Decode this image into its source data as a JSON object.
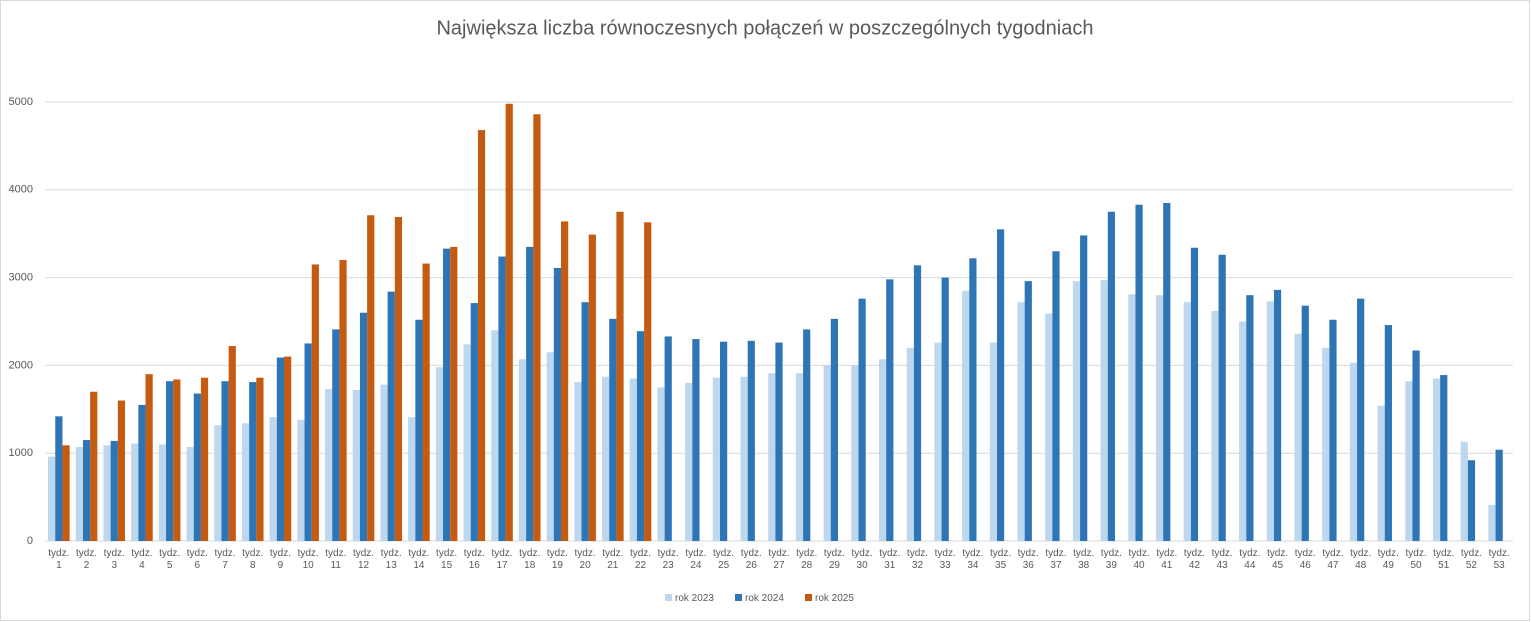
{
  "chart_data": {
    "type": "bar",
    "title": "Największa liczba równoczesnych połączeń w poszczególnych tygodniach",
    "categories": [
      "tydz. 1",
      "tydz. 2",
      "tydz. 3",
      "tydz. 4",
      "tydz. 5",
      "tydz. 6",
      "tydz. 7",
      "tydz. 8",
      "tydz. 9",
      "tydz. 10",
      "tydz. 11",
      "tydz. 12",
      "tydz. 13",
      "tydz. 14",
      "tydz. 15",
      "tydz. 16",
      "tydz. 17",
      "tydz. 18",
      "tydz. 19",
      "tydz. 20",
      "tydz. 21",
      "tydz. 22",
      "tydz. 23",
      "tydz. 24",
      "tydz. 25",
      "tydz. 26",
      "tydz. 27",
      "tydz. 28",
      "tydz. 29",
      "tydz. 30",
      "tydz. 31",
      "tydz. 32",
      "tydz. 33",
      "tydz. 34",
      "tydz. 35",
      "tydz. 36",
      "tydz. 37",
      "tydz. 38",
      "tydz. 39",
      "tydz. 40",
      "tydz. 41",
      "tydz. 42",
      "tydz. 43",
      "tydz. 44",
      "tydz. 45",
      "tydz. 46",
      "tydz. 47",
      "tydz. 48",
      "tydz. 49",
      "tydz. 50",
      "tydz. 51",
      "tydz. 52",
      "tydz. 53"
    ],
    "series": [
      {
        "name": "rok 2023",
        "color": "#bdd7ee",
        "values": [
          960,
          1070,
          1090,
          1110,
          1100,
          1070,
          1320,
          1340,
          1410,
          1380,
          1730,
          1720,
          1780,
          1410,
          1980,
          2240,
          2400,
          2070,
          2150,
          1810,
          1870,
          1850,
          1750,
          1800,
          1860,
          1870,
          1910,
          1910,
          2000,
          2000,
          2070,
          2200,
          2260,
          2850,
          2260,
          2720,
          2590,
          2960,
          2970,
          2810,
          2800,
          2720,
          2620,
          2500,
          2730,
          2360,
          2200,
          2030,
          1540,
          1820,
          1850,
          1130,
          410
        ]
      },
      {
        "name": "rok 2024",
        "color": "#2e75b6",
        "values": [
          1420,
          1150,
          1140,
          1550,
          1820,
          1680,
          1820,
          1810,
          2090,
          2250,
          2410,
          2600,
          2840,
          2520,
          3330,
          2710,
          3240,
          3350,
          3110,
          2720,
          2530,
          2390,
          2330,
          2300,
          2270,
          2280,
          2260,
          2410,
          2530,
          2760,
          2980,
          3140,
          3000,
          3220,
          3550,
          2960,
          3300,
          3480,
          3750,
          3830,
          3850,
          3340,
          3260,
          2800,
          2860,
          2680,
          2520,
          2760,
          2460,
          2170,
          1890,
          920,
          1040
        ]
      },
      {
        "name": "rok 2025",
        "color": "#c55a11",
        "values": [
          1090,
          1700,
          1600,
          1900,
          1840,
          1860,
          2220,
          1860,
          2100,
          3150,
          3200,
          3710,
          3690,
          3160,
          3350,
          4680,
          4980,
          4860,
          3640,
          3490,
          3750,
          3630,
          null,
          null,
          null,
          null,
          null,
          null,
          null,
          null,
          null,
          null,
          null,
          null,
          null,
          null,
          null,
          null,
          null,
          null,
          null,
          null,
          null,
          null,
          null,
          null,
          null,
          null,
          null,
          null,
          null,
          null,
          null
        ]
      }
    ],
    "ylim": [
      0,
      5000
    ],
    "yticks": [
      0,
      1000,
      2000,
      3000,
      4000,
      5000
    ],
    "grid": true,
    "legend": "bottom"
  }
}
